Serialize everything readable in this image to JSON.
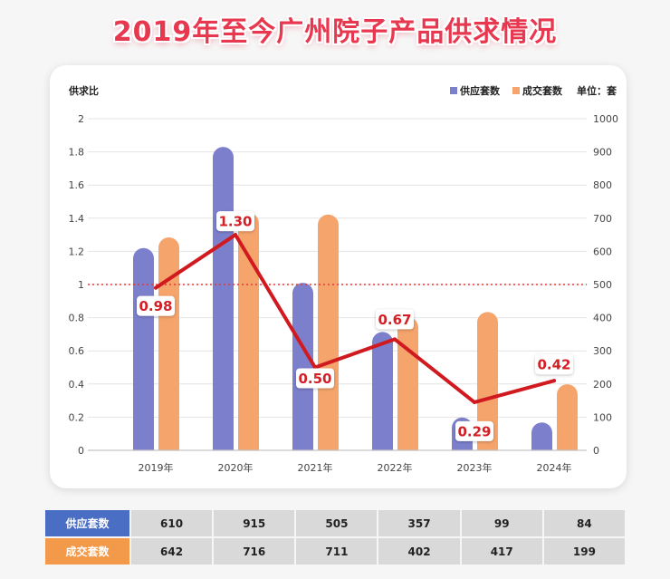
{
  "chart_data": {
    "type": "bar",
    "title": "2019年至今广州院子产品供求情况",
    "categories": [
      "2019年",
      "2020年",
      "2021年",
      "2022年",
      "2023年",
      "2024年"
    ],
    "series": [
      {
        "name": "供应套数",
        "type": "bar",
        "axis": "right",
        "color": "#7c80cc",
        "values": [
          610,
          915,
          505,
          357,
          99,
          84
        ]
      },
      {
        "name": "成交套数",
        "type": "bar",
        "axis": "right",
        "color": "#f5a46b",
        "values": [
          642,
          716,
          711,
          402,
          417,
          199
        ]
      },
      {
        "type": "line",
        "axis": "left",
        "color": "#d11a20",
        "values": [
          0.98,
          1.3,
          0.5,
          0.67,
          0.29,
          0.42
        ],
        "labels": [
          "0.98",
          "1.30",
          "0.50",
          "0.67",
          "0.29",
          "0.42"
        ]
      }
    ],
    "xlabel": "",
    "ylabel": "供求比",
    "ylim": [
      0,
      2
    ],
    "y_ticks": [
      "0",
      "0.2",
      "0.4",
      "0.6",
      "0.8",
      "1",
      "1.2",
      "1.4",
      "1.6",
      "1.8",
      "2"
    ],
    "y2label": "单位：套",
    "y2lim": [
      0,
      1000
    ],
    "y2_ticks": [
      "0",
      "100",
      "200",
      "300",
      "400",
      "500",
      "600",
      "700",
      "800",
      "900",
      "1000"
    ],
    "reference_line": {
      "value": 1,
      "color": "#e53935",
      "style": "dotted"
    },
    "grid": true,
    "legend": "top-right",
    "label_color": "#d32027"
  },
  "table": {
    "row_colors": [
      "#4a6ec4",
      "#f2994a"
    ]
  }
}
